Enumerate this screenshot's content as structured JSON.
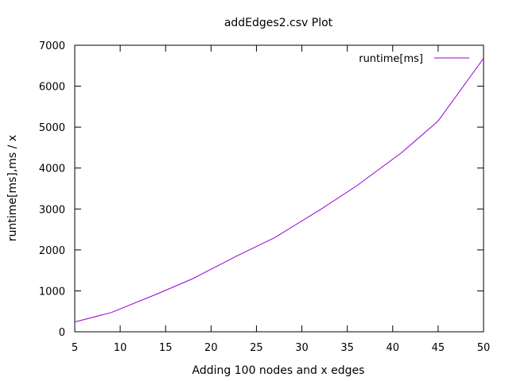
{
  "chart_data": {
    "type": "line",
    "title": "addEdges2.csv Plot",
    "xlabel": "Adding 100 nodes and x edges",
    "ylabel": "runtime[ms],ms / x",
    "xlim": [
      5,
      50
    ],
    "ylim": [
      0,
      7000
    ],
    "xticks": [
      5,
      10,
      15,
      20,
      25,
      30,
      35,
      40,
      45,
      50
    ],
    "yticks": [
      0,
      1000,
      2000,
      3000,
      4000,
      5000,
      6000,
      7000
    ],
    "grid": false,
    "legend_position": "top-right",
    "series": [
      {
        "name": "runtime[ms]",
        "color": "#9400d3",
        "x": [
          5,
          9,
          14,
          18,
          23,
          27,
          32,
          36,
          41,
          45,
          50
        ],
        "y": [
          240,
          470,
          920,
          1300,
          1870,
          2300,
          2980,
          3560,
          4380,
          5150,
          6680
        ]
      }
    ]
  }
}
